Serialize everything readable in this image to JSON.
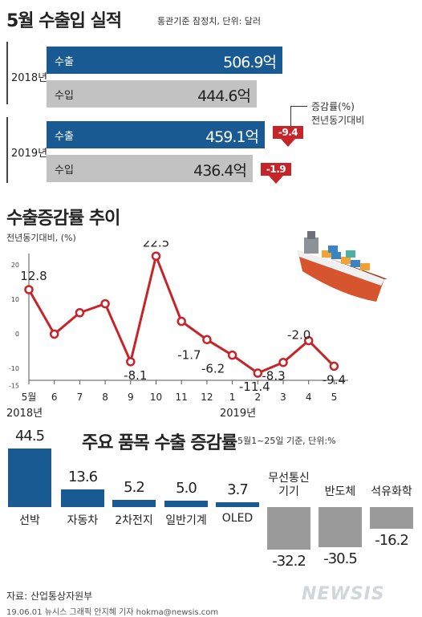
{
  "section1": {
    "title": "5월 수출입 실적",
    "subtitle": "통관기준 잠정치, 단위: 달러",
    "year2018": "2018년",
    "year2019": "2019년",
    "rows": [
      {
        "label": "수출",
        "value": "506.9억"
      },
      {
        "label": "수입",
        "value": "444.6억"
      },
      {
        "label": "수출",
        "value": "459.1억"
      },
      {
        "label": "수입",
        "value": "436.4억"
      }
    ],
    "note_line1": "증감률(%)",
    "note_line2": "전년동기대비",
    "badge_export": "-9.4",
    "badge_import": "-1.9"
  },
  "section2": {
    "title": "수출증감률 추이",
    "subtitle": "전년동기대비, (%)",
    "y_ticks": [
      "20",
      "10",
      "0",
      "-10",
      "-15"
    ],
    "x_ticks": [
      "5월",
      "6",
      "7",
      "8",
      "9",
      "10",
      "11",
      "12",
      "1",
      "2",
      "3",
      "4",
      "5"
    ],
    "year_left": "2018년",
    "year_right": "2019년",
    "point_labels": [
      "12.8",
      "22.5",
      "-8.1",
      "-1.7",
      "-6.2",
      "-11.4",
      "-8.3",
      "-2.0",
      "-9.4"
    ]
  },
  "section3": {
    "title": "주요 품목 수출 증감률",
    "subtitle": "5월1~25일 기준, 단위:%",
    "items": [
      {
        "name": "선박",
        "value": "44.5"
      },
      {
        "name": "자동차",
        "value": "13.6"
      },
      {
        "name": "2차전지",
        "value": "5.2"
      },
      {
        "name": "일반기계",
        "value": "5.0"
      },
      {
        "name": "OLED",
        "value": "3.7"
      },
      {
        "name": "무선통신\n기기",
        "value": "-32.2"
      },
      {
        "name": "반도체",
        "value": "-30.5"
      },
      {
        "name": "석유화학",
        "value": "-16.2"
      }
    ]
  },
  "footer": {
    "source": "자료: 산업통상자원부",
    "credit": "19.06.01  뉴시스 그래픽 안지혜 기자 hokma@newsis.com",
    "logo": "NEWSIS"
  },
  "colors": {
    "export": "#1a5a93",
    "import": "#c2c2c2",
    "line": "#c7242a",
    "negative": "#9a9a9a"
  },
  "icons": [
    "cargo-ship-icon",
    "down-arrow-icon"
  ],
  "chart_data": [
    {
      "type": "bar",
      "title": "5월 수출입 실적",
      "categories": [
        "2018 수출",
        "2018 수입",
        "2019 수출",
        "2019 수입"
      ],
      "values": [
        506.9,
        444.6,
        459.1,
        436.4
      ],
      "unit": "억 달러",
      "change_pct": {
        "수출": -9.4,
        "수입": -1.9
      }
    },
    {
      "type": "line",
      "title": "수출증감률 추이",
      "x": [
        "2018-05",
        "2018-06",
        "2018-07",
        "2018-08",
        "2018-09",
        "2018-10",
        "2018-11",
        "2018-12",
        "2019-01",
        "2019-02",
        "2019-03",
        "2019-04",
        "2019-05"
      ],
      "values": [
        12.8,
        -0.1,
        6.1,
        8.7,
        -8.1,
        22.5,
        3.6,
        -1.7,
        -6.2,
        -11.4,
        -8.3,
        -2.0,
        -9.4
      ],
      "ylabel": "전년동기대비, (%)",
      "ylim": [
        -15,
        22.5
      ],
      "grid": false
    },
    {
      "type": "bar",
      "title": "주요 품목 수출 증감률",
      "categories": [
        "선박",
        "자동차",
        "2차전지",
        "일반기계",
        "OLED",
        "무선통신기기",
        "반도체",
        "석유화학"
      ],
      "values": [
        44.5,
        13.6,
        5.2,
        5.0,
        3.7,
        -32.2,
        -30.5,
        -16.2
      ],
      "unit": "%"
    }
  ]
}
